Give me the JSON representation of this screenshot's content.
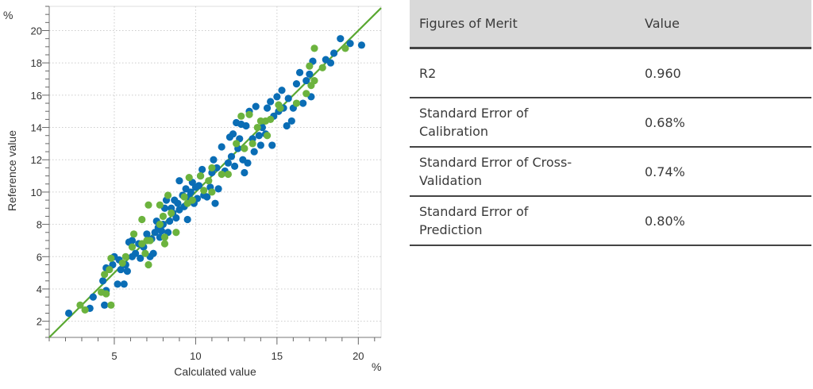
{
  "chart_data": {
    "type": "scatter",
    "xlabel": "Calculated value",
    "ylabel": "Reference value",
    "x_unit": "%",
    "y_unit": "%",
    "xlim": [
      1,
      21.4
    ],
    "ylim": [
      1,
      21.5
    ],
    "x_ticks": [
      "5",
      "10",
      "15",
      "20"
    ],
    "y_ticks": [
      "2",
      "4",
      "6",
      "8",
      "10",
      "12",
      "14",
      "16",
      "18",
      "20"
    ],
    "grid": true,
    "legend": "none",
    "reference_line": {
      "type": "y=x",
      "color": "#5aa832"
    },
    "colors": {
      "series_1": "#0a6db5",
      "series_2": "#6cb33e"
    },
    "series": [
      {
        "points": [
          [
            2.2,
            2.5
          ],
          [
            3.5,
            2.8
          ],
          [
            3.7,
            3.5
          ],
          [
            4.4,
            3.0
          ],
          [
            4.5,
            3.9
          ],
          [
            4.3,
            4.5
          ],
          [
            4.5,
            5.3
          ],
          [
            4.9,
            5.5
          ],
          [
            5.0,
            6.0
          ],
          [
            5.2,
            4.3
          ],
          [
            5.6,
            4.3
          ],
          [
            5.4,
            5.2
          ],
          [
            5.8,
            5.1
          ],
          [
            5.3,
            5.8
          ],
          [
            5.7,
            5.5
          ],
          [
            5.9,
            6.9
          ],
          [
            6.1,
            6.0
          ],
          [
            6.3,
            6.2
          ],
          [
            6.1,
            7.0
          ],
          [
            6.5,
            6.8
          ],
          [
            6.6,
            5.9
          ],
          [
            6.8,
            6.6
          ],
          [
            7.0,
            7.4
          ],
          [
            7.2,
            6.0
          ],
          [
            7.3,
            7.1
          ],
          [
            7.4,
            6.2
          ],
          [
            7.5,
            7.5
          ],
          [
            7.6,
            8.2
          ],
          [
            7.7,
            7.8
          ],
          [
            7.8,
            7.2
          ],
          [
            7.9,
            7.6
          ],
          [
            8.0,
            8.0
          ],
          [
            8.1,
            9.0
          ],
          [
            8.2,
            9.5
          ],
          [
            8.3,
            7.5
          ],
          [
            8.4,
            8.2
          ],
          [
            8.5,
            9.0
          ],
          [
            8.6,
            8.7
          ],
          [
            8.7,
            9.5
          ],
          [
            8.8,
            8.4
          ],
          [
            8.9,
            9.3
          ],
          [
            9.0,
            8.9
          ],
          [
            9.0,
            10.7
          ],
          [
            9.2,
            9.8
          ],
          [
            9.3,
            9.1
          ],
          [
            9.4,
            10.2
          ],
          [
            9.5,
            8.3
          ],
          [
            9.6,
            9.7
          ],
          [
            9.7,
            10.0
          ],
          [
            9.8,
            10.6
          ],
          [
            9.9,
            9.3
          ],
          [
            10.0,
            10.3
          ],
          [
            10.1,
            9.6
          ],
          [
            10.2,
            10.4
          ],
          [
            10.3,
            11.0
          ],
          [
            10.4,
            11.4
          ],
          [
            10.5,
            9.8
          ],
          [
            10.7,
            9.7
          ],
          [
            10.9,
            10.3
          ],
          [
            11.0,
            11.2
          ],
          [
            11.1,
            12.0
          ],
          [
            11.2,
            9.3
          ],
          [
            11.3,
            11.5
          ],
          [
            11.4,
            10.2
          ],
          [
            11.6,
            12.8
          ],
          [
            11.8,
            11.3
          ],
          [
            12.0,
            11.8
          ],
          [
            12.1,
            13.4
          ],
          [
            12.2,
            12.2
          ],
          [
            12.3,
            13.6
          ],
          [
            12.4,
            11.6
          ],
          [
            12.5,
            14.3
          ],
          [
            12.6,
            12.7
          ],
          [
            12.7,
            13.3
          ],
          [
            12.8,
            14.2
          ],
          [
            12.9,
            12.0
          ],
          [
            13.0,
            11.2
          ],
          [
            13.1,
            14.1
          ],
          [
            13.2,
            11.8
          ],
          [
            13.3,
            15.0
          ],
          [
            13.5,
            13.3
          ],
          [
            13.6,
            12.5
          ],
          [
            13.7,
            15.3
          ],
          [
            13.9,
            13.5
          ],
          [
            14.0,
            12.9
          ],
          [
            14.1,
            14.0
          ],
          [
            14.3,
            13.6
          ],
          [
            14.4,
            15.2
          ],
          [
            14.6,
            15.6
          ],
          [
            14.7,
            12.9
          ],
          [
            14.8,
            14.7
          ],
          [
            15.0,
            15.9
          ],
          [
            15.1,
            15.0
          ],
          [
            15.3,
            16.3
          ],
          [
            15.4,
            15.2
          ],
          [
            15.6,
            14.1
          ],
          [
            15.7,
            15.8
          ],
          [
            15.9,
            14.4
          ],
          [
            16.0,
            15.2
          ],
          [
            16.2,
            16.7
          ],
          [
            16.4,
            17.4
          ],
          [
            16.6,
            15.5
          ],
          [
            16.8,
            16.9
          ],
          [
            17.0,
            17.3
          ],
          [
            17.1,
            15.9
          ],
          [
            17.2,
            18.1
          ],
          [
            18.0,
            18.2
          ],
          [
            18.3,
            18.0
          ],
          [
            18.5,
            18.6
          ],
          [
            18.9,
            19.5
          ],
          [
            19.5,
            19.2
          ],
          [
            20.2,
            19.1
          ]
        ]
      },
      {
        "points": [
          [
            2.9,
            3.0
          ],
          [
            3.2,
            2.7
          ],
          [
            4.2,
            3.8
          ],
          [
            4.5,
            3.7
          ],
          [
            4.8,
            3.0
          ],
          [
            4.4,
            4.9
          ],
          [
            4.7,
            5.2
          ],
          [
            4.8,
            5.9
          ],
          [
            5.5,
            5.6
          ],
          [
            5.7,
            6.0
          ],
          [
            6.1,
            6.6
          ],
          [
            6.2,
            7.4
          ],
          [
            6.7,
            6.8
          ],
          [
            6.7,
            8.3
          ],
          [
            6.9,
            6.2
          ],
          [
            7.0,
            7.0
          ],
          [
            7.1,
            5.5
          ],
          [
            7.1,
            9.2
          ],
          [
            7.2,
            7.0
          ],
          [
            7.8,
            8.0
          ],
          [
            7.8,
            9.2
          ],
          [
            8.0,
            8.5
          ],
          [
            8.1,
            7.2
          ],
          [
            8.1,
            6.8
          ],
          [
            8.3,
            9.8
          ],
          [
            8.5,
            8.7
          ],
          [
            8.8,
            7.5
          ],
          [
            9.3,
            9.7
          ],
          [
            9.5,
            9.3
          ],
          [
            9.6,
            10.9
          ],
          [
            9.8,
            9.5
          ],
          [
            10.3,
            11.0
          ],
          [
            10.5,
            10.1
          ],
          [
            10.8,
            10.7
          ],
          [
            11.0,
            10.0
          ],
          [
            11.0,
            11.5
          ],
          [
            11.6,
            11.1
          ],
          [
            12.0,
            11.1
          ],
          [
            12.5,
            13.0
          ],
          [
            12.8,
            14.7
          ],
          [
            13.0,
            12.7
          ],
          [
            13.3,
            14.8
          ],
          [
            13.5,
            13.0
          ],
          [
            13.8,
            14.0
          ],
          [
            14.0,
            14.4
          ],
          [
            14.3,
            14.4
          ],
          [
            14.4,
            13.5
          ],
          [
            14.6,
            14.5
          ],
          [
            15.1,
            15.4
          ],
          [
            15.2,
            15.2
          ],
          [
            16.2,
            15.5
          ],
          [
            16.8,
            16.1
          ],
          [
            17.0,
            17.8
          ],
          [
            17.1,
            16.6
          ],
          [
            17.3,
            18.9
          ],
          [
            17.3,
            16.9
          ],
          [
            17.8,
            17.7
          ],
          [
            19.2,
            18.9
          ]
        ]
      }
    ]
  },
  "table": {
    "headers": [
      "Figures of Merit",
      "Value"
    ],
    "rows": [
      {
        "label_lines": [
          "R2"
        ],
        "value": "0.960"
      },
      {
        "label_lines": [
          "Standard Error of",
          "Calibration"
        ],
        "value": "0.68%"
      },
      {
        "label_lines": [
          "Standard Error of Cross-",
          "Validation"
        ],
        "value": "0.74%"
      },
      {
        "label_lines": [
          "Standard Error of",
          "Prediction"
        ],
        "value": "0.80%"
      }
    ]
  }
}
